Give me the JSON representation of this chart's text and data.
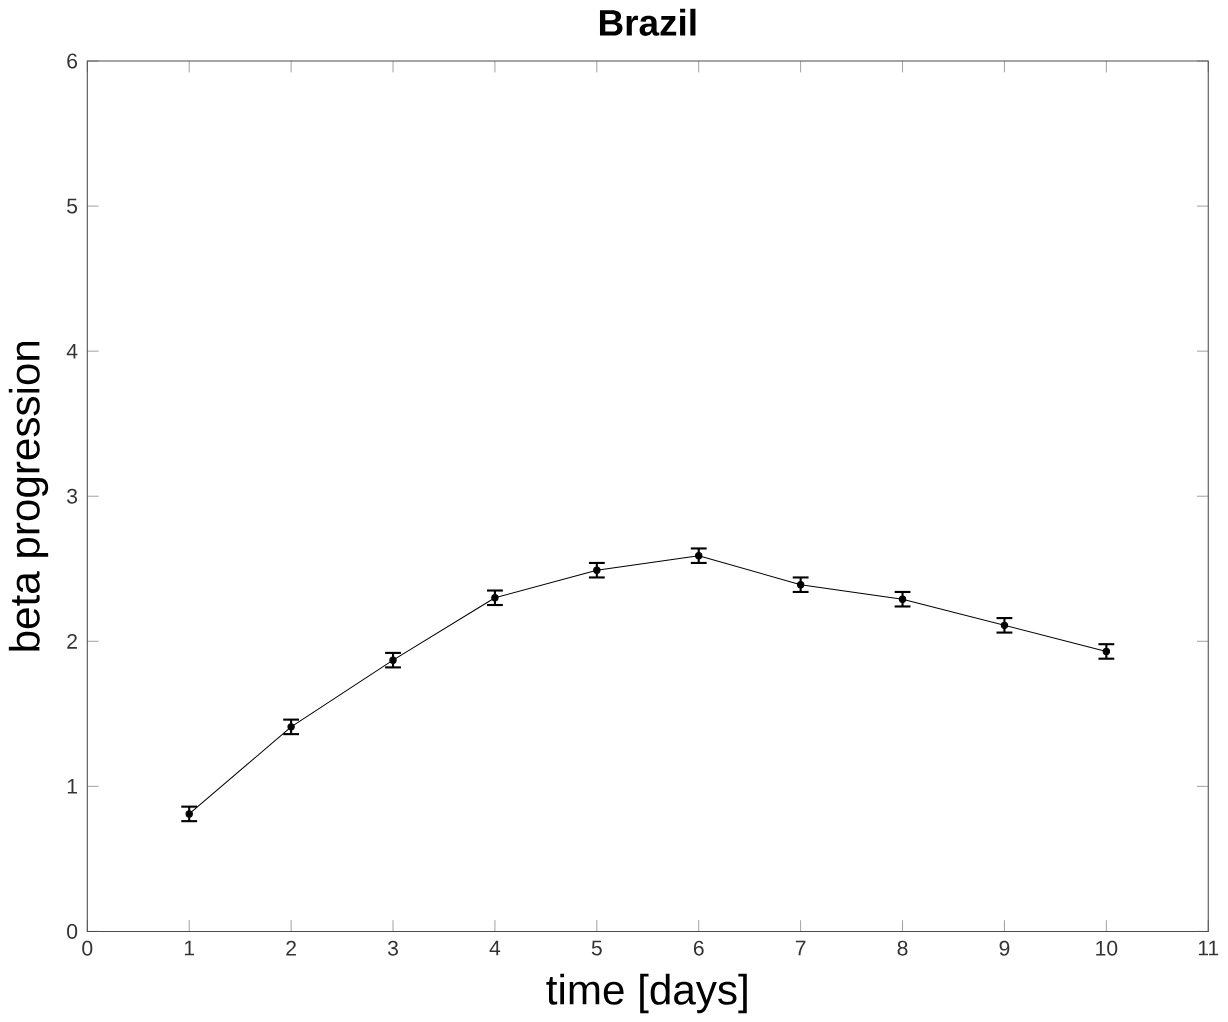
{
  "chart_data": {
    "type": "line",
    "title": "Brazil",
    "xlabel": "time [days]",
    "ylabel": "beta progression",
    "x": [
      1,
      2,
      3,
      4,
      5,
      6,
      7,
      8,
      9,
      10
    ],
    "series": [
      {
        "color": "#000000",
        "values": [
          0.81,
          1.41,
          1.87,
          2.3,
          2.49,
          2.59,
          2.39,
          2.29,
          2.11,
          1.93
        ],
        "errors": [
          0.05,
          0.05,
          0.05,
          0.05,
          0.05,
          0.05,
          0.05,
          0.05,
          0.05,
          0.05
        ]
      }
    ],
    "xlim": [
      0,
      11
    ],
    "ylim": [
      0,
      6
    ],
    "xticks": [
      0,
      1,
      2,
      3,
      4,
      5,
      6,
      7,
      8,
      9,
      10,
      11
    ],
    "yticks": [
      0,
      1,
      2,
      3,
      4,
      5,
      6
    ],
    "marker": "circle",
    "line_style": "solid"
  }
}
